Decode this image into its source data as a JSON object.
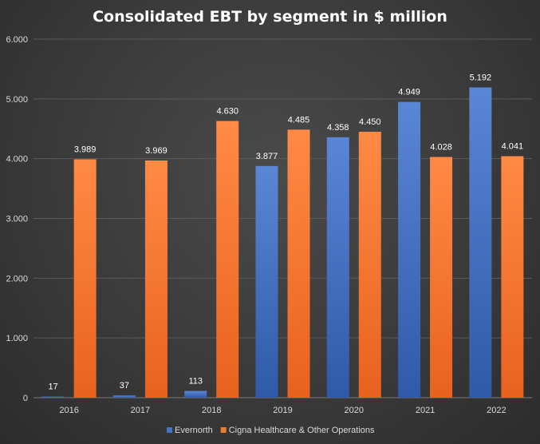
{
  "chart_data": {
    "type": "bar",
    "title": "Consolidated EBT by segment in $ million",
    "categories": [
      "2016",
      "2017",
      "2018",
      "2019",
      "2020",
      "2021",
      "2022"
    ],
    "series": [
      {
        "name": "Evernorth",
        "values": [
          17,
          37,
          113,
          3877,
          4358,
          4949,
          5192
        ],
        "labels": [
          "17",
          "37",
          "113",
          "3.877",
          "4.358",
          "4.949",
          "5.192"
        ],
        "color": "#4472c4"
      },
      {
        "name": "Cigna Healthcare & Other Operations",
        "values": [
          3989,
          3969,
          4630,
          4485,
          4450,
          4028,
          4041
        ],
        "labels": [
          "3.989",
          "3.969",
          "4.630",
          "4.485",
          "4.450",
          "4.028",
          "4.041"
        ],
        "color": "#ed7d31"
      }
    ],
    "yticks": [
      "0",
      "1.000",
      "2.000",
      "3.000",
      "4.000",
      "5.000",
      "6.000"
    ],
    "ylim": [
      0,
      6000
    ],
    "grid": true,
    "legend_position": "bottom"
  }
}
